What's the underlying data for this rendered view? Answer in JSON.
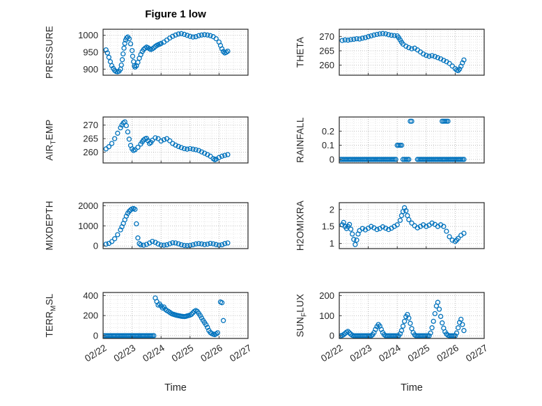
{
  "title": "Figure 1 low",
  "xlabel": "Time",
  "accent_color": "#0072BD",
  "x_axis": {
    "labels": [
      "02/22",
      "02/23",
      "02/24",
      "02/25",
      "02/26",
      "02/27"
    ],
    "values": [
      0,
      1,
      2,
      3,
      4,
      5
    ],
    "xlim": [
      0,
      5
    ]
  },
  "chart_data": [
    {
      "type": "scatter",
      "name": "PRESSURE",
      "ylabel": {
        "pre": "PRESSURE",
        "sub": "",
        "post": ""
      },
      "yticks": [
        900,
        950,
        1000
      ],
      "ytick_labels": [
        "900",
        "950",
        "1000"
      ],
      "ylim": [
        882,
        1018
      ],
      "grid": true,
      "x": [
        0.1,
        0.15,
        0.2,
        0.25,
        0.3,
        0.35,
        0.4,
        0.45,
        0.5,
        0.55,
        0.6,
        0.63,
        0.66,
        0.69,
        0.72,
        0.75,
        0.78,
        0.81,
        0.85,
        0.9,
        0.95,
        1.0,
        1.02,
        1.05,
        1.08,
        1.1,
        1.15,
        1.2,
        1.25,
        1.3,
        1.35,
        1.4,
        1.45,
        1.5,
        1.55,
        1.6,
        1.65,
        1.7,
        1.75,
        1.8,
        1.85,
        1.9,
        1.95,
        2.0,
        2.1,
        2.2,
        2.3,
        2.4,
        2.5,
        2.6,
        2.7,
        2.8,
        2.9,
        3.0,
        3.1,
        3.2,
        3.3,
        3.4,
        3.5,
        3.6,
        3.7,
        3.8,
        3.9,
        4.0,
        4.05,
        4.1,
        4.15,
        4.2,
        4.25,
        4.3
      ],
      "y": [
        957,
        948,
        935,
        922,
        910,
        902,
        896,
        893,
        892,
        894,
        900,
        912,
        928,
        945,
        962,
        976,
        986,
        992,
        995,
        990,
        975,
        955,
        938,
        922,
        910,
        906,
        910,
        920,
        932,
        943,
        952,
        958,
        962,
        965,
        963,
        960,
        958,
        960,
        963,
        967,
        970,
        972,
        974,
        976,
        980,
        986,
        992,
        997,
        1001,
        1004,
        1005,
        1003,
        1000,
        997,
        995,
        996,
        999,
        1001,
        1002,
        1001,
        999,
        996,
        990,
        980,
        970,
        960,
        952,
        948,
        950,
        953
      ]
    },
    {
      "type": "scatter",
      "name": "AIR_TEMP",
      "ylabel": {
        "pre": "AIR",
        "sub": "T",
        "post": "EMP"
      },
      "yticks": [
        260,
        265,
        270
      ],
      "ytick_labels": [
        "260",
        "265",
        "270"
      ],
      "ylim": [
        256,
        273
      ],
      "grid": true,
      "x": [
        0.1,
        0.2,
        0.3,
        0.4,
        0.5,
        0.6,
        0.65,
        0.7,
        0.75,
        0.8,
        0.85,
        0.9,
        0.95,
        1.0,
        1.05,
        1.1,
        1.2,
        1.3,
        1.35,
        1.4,
        1.45,
        1.5,
        1.55,
        1.6,
        1.65,
        1.7,
        1.8,
        1.9,
        2.0,
        2.1,
        2.2,
        2.3,
        2.4,
        2.5,
        2.6,
        2.7,
        2.8,
        2.9,
        3.0,
        3.1,
        3.2,
        3.3,
        3.4,
        3.5,
        3.6,
        3.7,
        3.8,
        3.85,
        3.9,
        4.0,
        4.1,
        4.2,
        4.3
      ],
      "y": [
        261.2,
        262.0,
        263.2,
        265.0,
        267.0,
        269.0,
        270.0,
        270.8,
        271.2,
        269.8,
        267.5,
        264.8,
        262.5,
        261.2,
        260.6,
        260.9,
        261.8,
        263.0,
        263.8,
        264.5,
        264.9,
        265.1,
        264.2,
        263.2,
        263.6,
        264.4,
        265.3,
        265.0,
        264.1,
        264.6,
        265.0,
        264.2,
        263.2,
        262.6,
        262.1,
        261.7,
        261.3,
        261.1,
        261.3,
        261.1,
        260.9,
        260.6,
        260.1,
        259.6,
        259.1,
        258.5,
        257.6,
        257.2,
        257.4,
        258.0,
        258.5,
        258.8,
        259.1
      ]
    },
    {
      "type": "scatter",
      "name": "MIXDEPTH",
      "ylabel": {
        "pre": "MIXDEPTH",
        "sub": "",
        "post": ""
      },
      "yticks": [
        0,
        1000,
        2000
      ],
      "ytick_labels": [
        "0",
        "1000",
        "2000"
      ],
      "ylim": [
        -130,
        2150
      ],
      "grid": true,
      "x": [
        0.1,
        0.2,
        0.3,
        0.4,
        0.5,
        0.6,
        0.65,
        0.7,
        0.75,
        0.8,
        0.85,
        0.9,
        0.95,
        1.0,
        1.05,
        1.1,
        1.15,
        1.2,
        1.25,
        1.3,
        1.4,
        1.5,
        1.6,
        1.7,
        1.8,
        1.9,
        2.0,
        2.1,
        2.2,
        2.3,
        2.4,
        2.5,
        2.6,
        2.7,
        2.8,
        2.9,
        3.0,
        3.1,
        3.2,
        3.3,
        3.4,
        3.5,
        3.6,
        3.7,
        3.8,
        3.9,
        4.0,
        4.1,
        4.2,
        4.3
      ],
      "y": [
        90,
        130,
        220,
        360,
        560,
        800,
        950,
        1120,
        1300,
        1480,
        1620,
        1720,
        1790,
        1840,
        1860,
        1820,
        1100,
        400,
        120,
        60,
        40,
        80,
        150,
        230,
        180,
        100,
        50,
        40,
        60,
        110,
        160,
        150,
        110,
        60,
        30,
        20,
        30,
        60,
        100,
        120,
        100,
        70,
        90,
        130,
        110,
        70,
        40,
        60,
        120,
        150
      ]
    },
    {
      "type": "scatter",
      "name": "TERR_MSL",
      "ylabel": {
        "pre": "TERR",
        "sub": "M",
        "post": "SL"
      },
      "yticks": [
        0,
        200,
        400
      ],
      "ytick_labels": [
        "0",
        "200",
        "400"
      ],
      "ylim": [
        -28,
        430
      ],
      "grid": true,
      "x": [
        0.05,
        0.1,
        0.15,
        0.2,
        0.25,
        0.3,
        0.35,
        0.4,
        0.45,
        0.5,
        0.55,
        0.6,
        0.65,
        0.7,
        0.75,
        0.8,
        0.85,
        0.9,
        0.95,
        1.0,
        1.05,
        1.1,
        1.15,
        1.2,
        1.25,
        1.3,
        1.35,
        1.4,
        1.45,
        1.5,
        1.55,
        1.6,
        1.65,
        1.7,
        1.75,
        1.8,
        1.85,
        1.9,
        1.95,
        2.0,
        2.05,
        2.1,
        2.15,
        2.2,
        2.25,
        2.3,
        2.35,
        2.4,
        2.45,
        2.5,
        2.55,
        2.6,
        2.65,
        2.7,
        2.75,
        2.8,
        2.85,
        2.9,
        2.95,
        3.0,
        3.05,
        3.1,
        3.15,
        3.2,
        3.25,
        3.3,
        3.35,
        3.4,
        3.45,
        3.5,
        3.55,
        3.6,
        3.65,
        3.7,
        3.75,
        3.8,
        3.85,
        3.9,
        3.95,
        4.05,
        4.1,
        4.15
      ],
      "y": [
        0,
        0,
        0,
        0,
        0,
        0,
        0,
        0,
        0,
        0,
        0,
        0,
        0,
        0,
        0,
        0,
        0,
        0,
        0,
        0,
        0,
        0,
        0,
        0,
        0,
        0,
        0,
        0,
        0,
        0,
        0,
        0,
        0,
        0,
        0,
        375,
        340,
        305,
        315,
        295,
        275,
        285,
        262,
        250,
        242,
        232,
        222,
        215,
        210,
        206,
        202,
        199,
        196,
        193,
        191,
        190,
        192,
        196,
        200,
        205,
        213,
        228,
        242,
        250,
        241,
        222,
        200,
        176,
        152,
        130,
        109,
        82,
        52,
        32,
        21,
        14,
        10,
        18,
        28,
        335,
        328,
        150
      ]
    },
    {
      "type": "scatter",
      "name": "THETA",
      "ylabel": {
        "pre": "THETA",
        "sub": "",
        "post": ""
      },
      "yticks": [
        260,
        265,
        270
      ],
      "ytick_labels": [
        "260",
        "265",
        "270"
      ],
      "ylim": [
        256.5,
        272.5
      ],
      "grid": true,
      "x": [
        0.1,
        0.2,
        0.3,
        0.4,
        0.5,
        0.6,
        0.7,
        0.8,
        0.9,
        1.0,
        1.1,
        1.2,
        1.3,
        1.4,
        1.5,
        1.6,
        1.7,
        1.8,
        1.9,
        2.0,
        2.05,
        2.1,
        2.15,
        2.2,
        2.3,
        2.4,
        2.5,
        2.6,
        2.7,
        2.8,
        2.9,
        3.0,
        3.1,
        3.2,
        3.3,
        3.4,
        3.5,
        3.6,
        3.7,
        3.8,
        3.9,
        4.0,
        4.05,
        4.1,
        4.15,
        4.2,
        4.25,
        4.3
      ],
      "y": [
        268.6,
        268.8,
        268.7,
        268.9,
        269.0,
        269.2,
        269.1,
        269.4,
        269.6,
        269.9,
        270.2,
        270.5,
        270.7,
        270.9,
        271.0,
        270.9,
        270.6,
        270.4,
        270.3,
        270.2,
        269.6,
        268.8,
        268.0,
        267.3,
        266.6,
        266.1,
        265.7,
        265.9,
        265.3,
        264.6,
        263.9,
        263.4,
        263.1,
        263.3,
        263.0,
        262.6,
        262.2,
        261.7,
        261.2,
        260.6,
        259.7,
        258.8,
        258.3,
        258.1,
        258.6,
        259.6,
        260.8,
        261.8
      ]
    },
    {
      "type": "scatter",
      "name": "RAINFALL",
      "ylabel": {
        "pre": "RAINFALL",
        "sub": "",
        "post": ""
      },
      "yticks": [
        0,
        0.1,
        0.2
      ],
      "ytick_labels": [
        "0",
        "0.1",
        "0.2"
      ],
      "ylim": [
        -0.025,
        0.3
      ],
      "grid": true,
      "x": [
        0.05,
        0.1,
        0.15,
        0.2,
        0.25,
        0.3,
        0.35,
        0.4,
        0.45,
        0.5,
        0.55,
        0.6,
        0.65,
        0.7,
        0.75,
        0.8,
        0.85,
        0.9,
        0.95,
        1.0,
        1.05,
        1.1,
        1.15,
        1.2,
        1.25,
        1.3,
        1.35,
        1.4,
        1.45,
        1.5,
        1.55,
        1.6,
        1.65,
        1.7,
        1.75,
        1.8,
        1.85,
        1.9,
        1.95,
        2.0,
        2.05,
        2.1,
        2.15,
        2.2,
        2.25,
        2.3,
        2.35,
        2.4,
        2.45,
        2.5,
        2.7,
        2.75,
        2.8,
        2.85,
        2.9,
        2.95,
        3.0,
        3.05,
        3.1,
        3.15,
        3.2,
        3.25,
        3.3,
        3.35,
        3.4,
        3.45,
        3.5,
        3.55,
        3.6,
        3.65,
        3.7,
        3.75,
        3.55,
        3.6,
        3.65,
        3.7,
        3.75,
        3.8,
        3.85,
        3.9,
        3.95,
        4.0,
        4.05,
        4.1,
        4.15,
        4.2,
        4.25,
        4.3
      ],
      "y": [
        0,
        0,
        0,
        0,
        0,
        0,
        0,
        0,
        0,
        0,
        0,
        0,
        0,
        0,
        0,
        0,
        0,
        0,
        0,
        0,
        0,
        0,
        0,
        0,
        0,
        0,
        0,
        0,
        0,
        0,
        0,
        0,
        0,
        0,
        0,
        0,
        0,
        0,
        0,
        0.1,
        0.1,
        0.1,
        0.1,
        0,
        0,
        0,
        0,
        0,
        0.27,
        0.27,
        0,
        0,
        0,
        0,
        0,
        0,
        0,
        0,
        0,
        0,
        0,
        0,
        0,
        0,
        0,
        0,
        0,
        0,
        0,
        0,
        0,
        0,
        0.27,
        0.27,
        0.27,
        0.27,
        0.27,
        0,
        0,
        0,
        0,
        0,
        0,
        0,
        0,
        0,
        0,
        0
      ]
    },
    {
      "type": "scatter",
      "name": "H2OMIXRA",
      "ylabel": {
        "pre": "H2OMIXRA",
        "sub": "",
        "post": ""
      },
      "yticks": [
        1,
        1.5,
        2
      ],
      "ytick_labels": [
        "1",
        "1.5",
        "2"
      ],
      "ylim": [
        0.85,
        2.2
      ],
      "grid": true,
      "x": [
        0.1,
        0.15,
        0.2,
        0.25,
        0.3,
        0.35,
        0.4,
        0.45,
        0.5,
        0.55,
        0.6,
        0.65,
        0.7,
        0.8,
        0.9,
        1.0,
        1.1,
        1.2,
        1.3,
        1.4,
        1.5,
        1.6,
        1.7,
        1.8,
        1.9,
        2.0,
        2.1,
        2.15,
        2.2,
        2.25,
        2.3,
        2.35,
        2.4,
        2.5,
        2.6,
        2.7,
        2.8,
        2.9,
        3.0,
        3.1,
        3.2,
        3.3,
        3.4,
        3.5,
        3.6,
        3.7,
        3.8,
        3.9,
        4.0,
        4.05,
        4.1,
        4.2,
        4.3
      ],
      "y": [
        1.55,
        1.62,
        1.5,
        1.44,
        1.5,
        1.56,
        1.42,
        1.28,
        1.12,
        0.97,
        1.1,
        1.28,
        1.38,
        1.44,
        1.4,
        1.45,
        1.5,
        1.46,
        1.41,
        1.44,
        1.49,
        1.45,
        1.41,
        1.45,
        1.5,
        1.55,
        1.68,
        1.82,
        1.94,
        2.05,
        1.96,
        1.82,
        1.7,
        1.6,
        1.52,
        1.46,
        1.5,
        1.55,
        1.5,
        1.54,
        1.6,
        1.56,
        1.5,
        1.55,
        1.5,
        1.36,
        1.2,
        1.1,
        1.06,
        1.1,
        1.15,
        1.24,
        1.3
      ]
    },
    {
      "type": "scatter",
      "name": "SUN_FLUX",
      "ylabel": {
        "pre": "SUN",
        "sub": "F",
        "post": "LUX"
      },
      "yticks": [
        0,
        100,
        200
      ],
      "ytick_labels": [
        "0",
        "100",
        "200"
      ],
      "ylim": [
        -13,
        215
      ],
      "grid": true,
      "x": [
        0.05,
        0.1,
        0.15,
        0.2,
        0.25,
        0.3,
        0.35,
        0.4,
        0.45,
        0.5,
        0.55,
        0.6,
        0.65,
        0.7,
        0.75,
        0.8,
        0.85,
        0.9,
        0.95,
        1.0,
        1.05,
        1.1,
        1.15,
        1.2,
        1.25,
        1.3,
        1.35,
        1.4,
        1.45,
        1.5,
        1.55,
        1.6,
        1.65,
        1.7,
        1.75,
        1.8,
        1.85,
        1.9,
        1.95,
        2.0,
        2.05,
        2.1,
        2.15,
        2.2,
        2.25,
        2.3,
        2.35,
        2.4,
        2.45,
        2.5,
        2.55,
        2.6,
        2.65,
        2.7,
        2.75,
        2.8,
        2.85,
        2.9,
        2.95,
        3.0,
        3.05,
        3.1,
        3.15,
        3.2,
        3.25,
        3.3,
        3.35,
        3.4,
        3.45,
        3.5,
        3.55,
        3.6,
        3.65,
        3.7,
        3.75,
        3.8,
        3.85,
        3.9,
        3.95,
        4.0,
        4.05,
        4.1,
        4.15,
        4.2,
        4.25,
        4.3
      ],
      "y": [
        0,
        2,
        6,
        12,
        18,
        22,
        15,
        8,
        3,
        0,
        0,
        0,
        0,
        0,
        0,
        0,
        0,
        0,
        0,
        0,
        0,
        0,
        6,
        16,
        32,
        46,
        56,
        48,
        32,
        16,
        6,
        0,
        0,
        0,
        0,
        0,
        0,
        0,
        0,
        0,
        0,
        10,
        26,
        48,
        72,
        95,
        106,
        88,
        62,
        36,
        16,
        5,
        0,
        0,
        0,
        0,
        0,
        0,
        0,
        0,
        0,
        0,
        14,
        40,
        72,
        110,
        148,
        166,
        132,
        96,
        64,
        38,
        20,
        9,
        3,
        0,
        0,
        0,
        0,
        0,
        14,
        40,
        66,
        82,
        56,
        26
      ]
    }
  ]
}
